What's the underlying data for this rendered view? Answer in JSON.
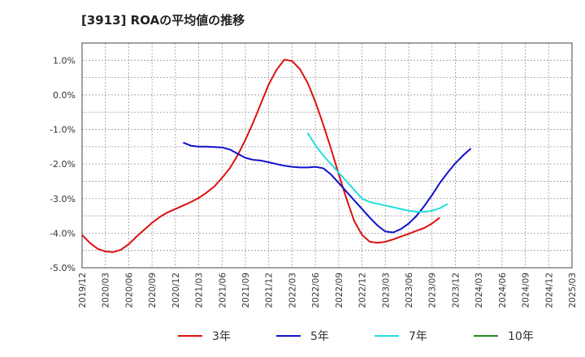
{
  "chart_data": {
    "type": "line",
    "title": "[3913]  ROAの平均値の推移",
    "xlabel": "",
    "ylabel": "",
    "ylim": [
      -5.0,
      1.5
    ],
    "y_ticks": [
      1.0,
      0.0,
      -1.0,
      -2.0,
      -3.0,
      -4.0,
      -5.0
    ],
    "y_tick_labels": [
      "1.0%",
      "0.0%",
      "-1.0%",
      "-2.0%",
      "-3.0%",
      "-4.0%",
      "-5.0%"
    ],
    "x_tick_labels": [
      "2019/12",
      "2020/03",
      "2020/06",
      "2020/09",
      "2020/12",
      "2021/03",
      "2021/06",
      "2021/09",
      "2021/12",
      "2022/03",
      "2022/06",
      "2022/09",
      "2022/12",
      "2023/03",
      "2023/06",
      "2023/09",
      "2023/12",
      "2024/03",
      "2024/06",
      "2024/09",
      "2024/12",
      "2025/03"
    ],
    "grid": true,
    "legend_position": "bottom",
    "series": [
      {
        "name": "3年",
        "color": "#dd1111",
        "values": [
          -4.05,
          -4.28,
          -4.45,
          -4.53,
          -4.55,
          -4.48,
          -4.32,
          -4.1,
          -3.9,
          -3.7,
          -3.53,
          -3.4,
          -3.3,
          -3.2,
          -3.1,
          -2.98,
          -2.83,
          -2.65,
          -2.4,
          -2.12,
          -1.75,
          -1.3,
          -0.8,
          -0.25,
          0.3,
          0.72,
          1.02,
          0.98,
          0.75,
          0.35,
          -0.2,
          -0.85,
          -1.55,
          -2.3,
          -3.0,
          -3.65,
          -4.05,
          -4.25,
          -4.28,
          -4.25,
          -4.18,
          -4.1,
          -4.02,
          -3.93,
          -3.85,
          -3.72,
          -3.55
        ]
      },
      {
        "name": "5年",
        "color": "#1111cc",
        "values": [
          null,
          null,
          null,
          null,
          null,
          null,
          null,
          null,
          null,
          null,
          null,
          null,
          null,
          -1.38,
          -1.47,
          -1.5,
          -1.5,
          -1.51,
          -1.52,
          -1.58,
          -1.7,
          -1.82,
          -1.88,
          -1.9,
          -1.95,
          -2.0,
          -2.05,
          -2.08,
          -2.1,
          -2.1,
          -2.08,
          -2.12,
          -2.3,
          -2.55,
          -2.8,
          -3.05,
          -3.3,
          -3.55,
          -3.78,
          -3.95,
          -3.98,
          -3.88,
          -3.72,
          -3.5,
          -3.22,
          -2.9,
          -2.55,
          -2.25,
          -1.98,
          -1.75,
          -1.55
        ]
      },
      {
        "name": "7年",
        "color": "#22dddd",
        "values": [
          null,
          null,
          null,
          null,
          null,
          null,
          null,
          null,
          null,
          null,
          null,
          null,
          null,
          null,
          null,
          null,
          null,
          null,
          null,
          null,
          null,
          null,
          null,
          null,
          null,
          null,
          null,
          null,
          null,
          -1.1,
          -1.45,
          -1.75,
          -2.0,
          -2.25,
          -2.5,
          -2.75,
          -3.0,
          -3.1,
          -3.15,
          -3.2,
          -3.25,
          -3.3,
          -3.35,
          -3.38,
          -3.38,
          -3.35,
          -3.28,
          -3.15
        ]
      },
      {
        "name": "10年",
        "color": "#228822",
        "values": []
      }
    ]
  }
}
